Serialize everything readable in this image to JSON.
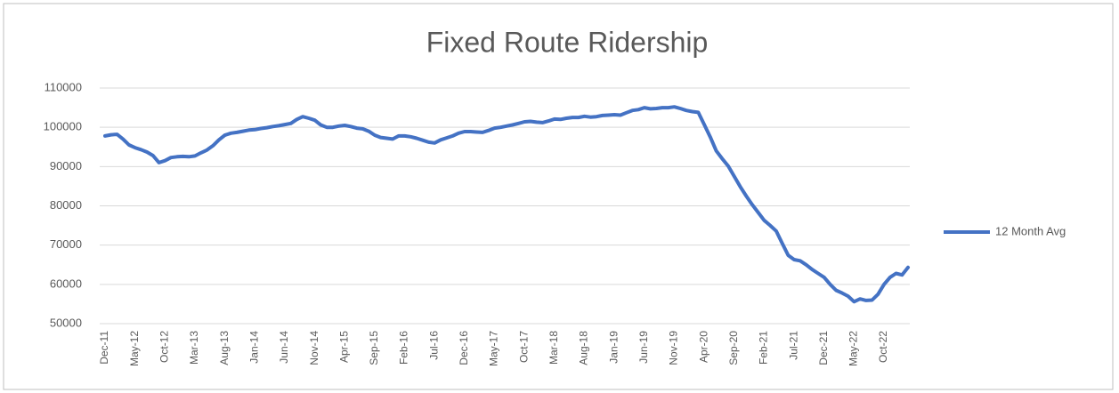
{
  "chart_data": {
    "type": "line",
    "title": "Fixed Route Ridership",
    "categories": [
      "Dec-11",
      null,
      null,
      null,
      null,
      "May-12",
      null,
      null,
      null,
      null,
      "Oct-12",
      null,
      null,
      null,
      null,
      "Mar-13",
      null,
      null,
      null,
      null,
      "Aug-13",
      null,
      null,
      null,
      null,
      "Jan-14",
      null,
      null,
      null,
      null,
      "Jun-14",
      null,
      null,
      null,
      null,
      "Nov-14",
      null,
      null,
      null,
      null,
      "Apr-15",
      null,
      null,
      null,
      null,
      "Sep-15",
      null,
      null,
      null,
      null,
      "Feb-16",
      null,
      null,
      null,
      null,
      "Jul-16",
      null,
      null,
      null,
      null,
      "Dec-16",
      null,
      null,
      null,
      null,
      "May-17",
      null,
      null,
      null,
      null,
      "Oct-17",
      null,
      null,
      null,
      null,
      "Mar-18",
      null,
      null,
      null,
      null,
      "Aug-18",
      null,
      null,
      null,
      null,
      "Jan-19",
      null,
      null,
      null,
      null,
      "Jun-19",
      null,
      null,
      null,
      null,
      "Nov-19",
      null,
      null,
      null,
      null,
      "Apr-20",
      null,
      null,
      null,
      null,
      "Sep-20",
      null,
      null,
      null,
      null,
      "Feb-21",
      null,
      null,
      null,
      null,
      "Jul-21",
      null,
      null,
      null,
      null,
      "Dec-21",
      null,
      null,
      null,
      null,
      "May-22",
      null,
      null,
      null,
      null,
      "Oct-22",
      null,
      null,
      null,
      null
    ],
    "series": [
      {
        "name": "12 Month Avg",
        "color": "#4472c4",
        "values": [
          97800,
          98100,
          98200,
          97000,
          95500,
          94800,
          94300,
          93700,
          92800,
          91000,
          91500,
          92300,
          92500,
          92600,
          92500,
          92700,
          93500,
          94200,
          95300,
          96800,
          98000,
          98500,
          98700,
          99000,
          99300,
          99400,
          99700,
          99900,
          100200,
          100400,
          100700,
          101000,
          102000,
          102700,
          102300,
          101800,
          100600,
          100000,
          100000,
          100300,
          100500,
          100200,
          99800,
          99600,
          99000,
          98000,
          97400,
          97200,
          97000,
          97800,
          97800,
          97600,
          97200,
          96700,
          96200,
          96000,
          96800,
          97300,
          97800,
          98500,
          98900,
          98900,
          98800,
          98700,
          99200,
          99800,
          100000,
          100300,
          100600,
          101000,
          101400,
          101500,
          101300,
          101200,
          101600,
          102100,
          102000,
          102300,
          102500,
          102500,
          102800,
          102600,
          102700,
          103000,
          103100,
          103200,
          103100,
          103700,
          104300,
          104500,
          105000,
          104700,
          104800,
          105000,
          105000,
          105200,
          104800,
          104300,
          104000,
          103800,
          100700,
          97500,
          94000,
          92000,
          90100,
          87500,
          84900,
          82500,
          80300,
          78300,
          76300,
          75000,
          73600,
          70500,
          67400,
          66300,
          66000,
          65000,
          63800,
          62800,
          61800,
          60000,
          58500,
          57800,
          57000,
          55600,
          56300,
          55900,
          56000,
          57500,
          60000,
          61800,
          62800,
          62400,
          64300
        ]
      }
    ],
    "ylim": [
      50000,
      110000
    ],
    "yticks": [
      50000,
      60000,
      70000,
      80000,
      90000,
      100000,
      110000
    ],
    "grid": true,
    "legend": "right"
  }
}
